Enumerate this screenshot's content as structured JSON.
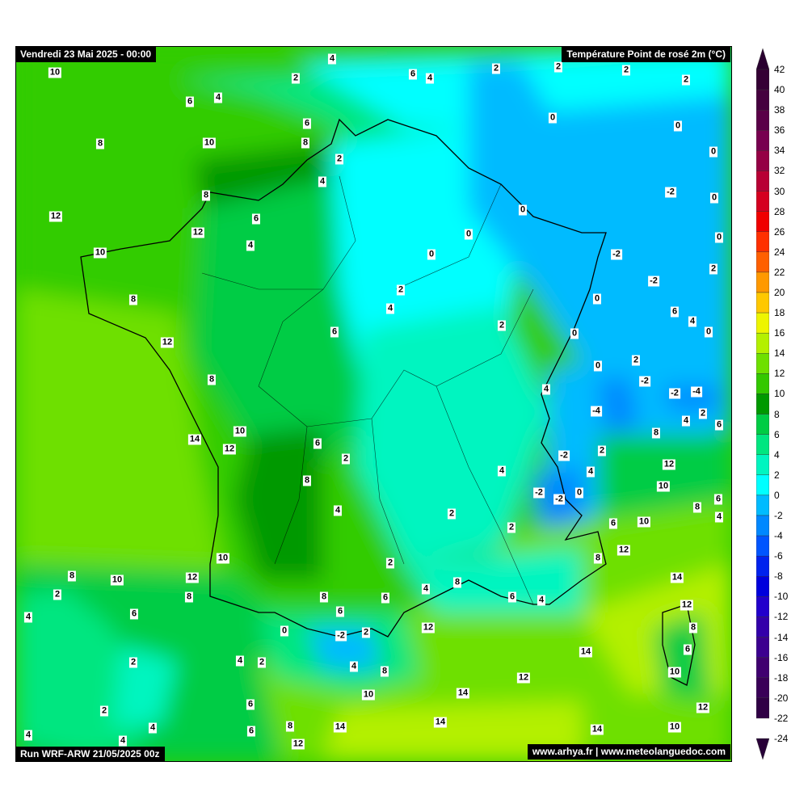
{
  "header": {
    "date_label": "Vendredi 23 Mai 2025 - 00:00",
    "title": "Température Point de rosé 2m (°C)",
    "run_label": "Run WRF-ARW 21/05/2025 00z",
    "credits": "www.arhya.fr | www.meteolanguedoc.com"
  },
  "colorbar": {
    "ticks": [
      "42",
      "40",
      "38",
      "36",
      "34",
      "32",
      "30",
      "28",
      "26",
      "24",
      "22",
      "20",
      "18",
      "16",
      "14",
      "12",
      "10",
      "8",
      "6",
      "4",
      "2",
      "0",
      "-2",
      "-4",
      "-6",
      "-8",
      "-10",
      "-12",
      "-14",
      "-16",
      "-18",
      "-20",
      "-22",
      "-24"
    ],
    "colors": [
      "#2a0030",
      "#350035",
      "#45003f",
      "#5a0048",
      "#780050",
      "#950045",
      "#b80035",
      "#d50020",
      "#f00000",
      "#ff3000",
      "#ff6000",
      "#ff9900",
      "#ffc800",
      "#eef500",
      "#b4f000",
      "#6ee000",
      "#33c800",
      "#009900",
      "#00cc44",
      "#00e680",
      "#00f5c0",
      "#00ffff",
      "#00bbff",
      "#0088ff",
      "#0055ff",
      "#0022ee",
      "#0000dd",
      "#2200cc",
      "#3300aa",
      "#3c0090",
      "#400070",
      "#3a0058",
      "#300045",
      "#280038"
    ]
  },
  "map": {
    "value_labels": [
      "4",
      "10",
      "2",
      "6",
      "4",
      "2",
      "2",
      "2",
      "2",
      "6",
      "4",
      "6",
      "0",
      "0",
      "8",
      "10",
      "8",
      "0",
      "2",
      "4",
      "8",
      "-2",
      "0",
      "12",
      "6",
      "0",
      "0",
      "12",
      "0",
      "4",
      "10",
      "0",
      "-2",
      "-2",
      "2",
      "2",
      "0",
      "8",
      "4",
      "6",
      "4",
      "6",
      "2",
      "0",
      "0",
      "12",
      "2",
      "0",
      "-2",
      "8",
      "4",
      "-2",
      "-4",
      "-4",
      "2",
      "4",
      "6",
      "10",
      "8",
      "14",
      "12",
      "6",
      "2",
      "-2",
      "2",
      "12",
      "4",
      "4",
      "8",
      "10",
      "-2",
      "-2",
      "0",
      "6",
      "8",
      "4",
      "4",
      "2",
      "6",
      "10",
      "2",
      "12",
      "10",
      "8",
      "2",
      "8",
      "10",
      "12",
      "14",
      "8",
      "4",
      "8",
      "2",
      "8",
      "6",
      "6",
      "4",
      "12",
      "4",
      "6",
      "6",
      "8",
      "12",
      "0",
      "2",
      "-2",
      "14",
      "6",
      "2",
      "4",
      "2",
      "4",
      "8",
      "10",
      "12",
      "10",
      "14",
      "6",
      "12",
      "2",
      "14",
      "4",
      "8",
      "14",
      "6",
      "14",
      "10",
      "4",
      "4",
      "12"
    ]
  }
}
